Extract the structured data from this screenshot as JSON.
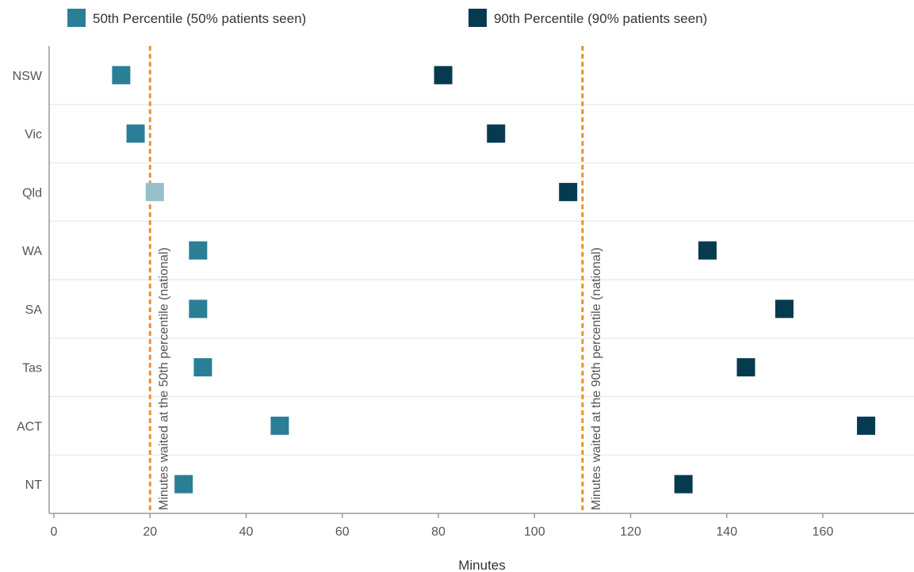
{
  "chart_data": {
    "type": "scatter",
    "orientation": "horizontal",
    "title": "",
    "xlabel": "Minutes",
    "ylabel": "",
    "xlim": [
      0,
      180
    ],
    "xticks": [
      0,
      20,
      40,
      60,
      80,
      100,
      120,
      140,
      160
    ],
    "categories": [
      "NSW",
      "Vic",
      "Qld",
      "WA",
      "SA",
      "Tas",
      "ACT",
      "NT"
    ],
    "legend_position": "top",
    "grid": "horizontal",
    "series": [
      {
        "name": "50th Percentile (50% patients seen)",
        "color": "#2a7f96",
        "values": [
          14,
          17,
          21,
          30,
          30,
          31,
          47,
          27
        ],
        "point_colors": [
          "#2a7f96",
          "#2a7f96",
          "#97bfcb",
          "#2a7f96",
          "#2a7f96",
          "#2a7f96",
          "#2a7f96",
          "#2a7f96"
        ]
      },
      {
        "name": "90th Percentile (90% patients seen)",
        "color": "#063b4f",
        "values": [
          81,
          92,
          107,
          136,
          152,
          144,
          169,
          131
        ],
        "point_colors": [
          "#063b4f",
          "#063b4f",
          "#063b4f",
          "#063b4f",
          "#063b4f",
          "#063b4f",
          "#063b4f",
          "#063b4f"
        ]
      }
    ],
    "reference_lines": [
      {
        "value": 20,
        "label": "Minutes waited at the 50th percentile (national)",
        "color": "#e8922f"
      },
      {
        "value": 110,
        "label": "Minutes waited at the 90th percentile (national)",
        "color": "#e8922f"
      }
    ]
  }
}
